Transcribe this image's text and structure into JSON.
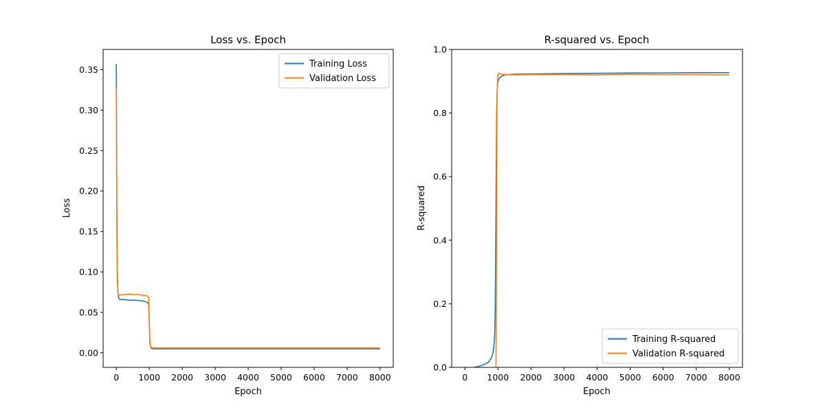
{
  "chart_data": [
    {
      "type": "line",
      "title": "Loss vs. Epoch",
      "xlabel": "Epoch",
      "ylabel": "Loss",
      "xlim": [
        -400,
        8400
      ],
      "ylim": [
        -0.018,
        0.375
      ],
      "xticks": [
        0,
        1000,
        2000,
        3000,
        4000,
        5000,
        6000,
        7000,
        8000
      ],
      "xtick_labels": [
        "0",
        "1000",
        "2000",
        "3000",
        "4000",
        "5000",
        "6000",
        "7000",
        "8000"
      ],
      "yticks": [
        0.0,
        0.05,
        0.1,
        0.15,
        0.2,
        0.25,
        0.3,
        0.35
      ],
      "ytick_labels": [
        "0.00",
        "0.05",
        "0.10",
        "0.15",
        "0.20",
        "0.25",
        "0.30",
        "0.35"
      ],
      "legend_position": "top-right",
      "grid": false,
      "series": [
        {
          "name": "Training Loss",
          "color": "#1f77b4",
          "x": [
            0,
            10,
            20,
            30,
            50,
            70,
            100,
            200,
            400,
            600,
            800,
            900,
            950,
            980,
            1000,
            1020,
            1050,
            1100,
            1500,
            2000,
            3000,
            4000,
            5000,
            6000,
            7000,
            8000
          ],
          "y": [
            0.357,
            0.25,
            0.15,
            0.1,
            0.075,
            0.068,
            0.066,
            0.066,
            0.065,
            0.065,
            0.064,
            0.063,
            0.062,
            0.06,
            0.035,
            0.012,
            0.006,
            0.005,
            0.005,
            0.005,
            0.005,
            0.005,
            0.005,
            0.005,
            0.005,
            0.005
          ]
        },
        {
          "name": "Validation Loss",
          "color": "#ff7f0e",
          "x": [
            0,
            10,
            20,
            30,
            50,
            70,
            100,
            200,
            300,
            400,
            500,
            600,
            700,
            800,
            900,
            950,
            980,
            1000,
            1020,
            1050,
            1100,
            1500,
            2000,
            3000,
            4000,
            5000,
            6000,
            7000,
            8000
          ],
          "y": [
            0.327,
            0.22,
            0.13,
            0.09,
            0.074,
            0.071,
            0.071,
            0.072,
            0.072,
            0.073,
            0.072,
            0.072,
            0.072,
            0.071,
            0.071,
            0.07,
            0.068,
            0.04,
            0.012,
            0.007,
            0.006,
            0.006,
            0.006,
            0.006,
            0.006,
            0.006,
            0.006,
            0.006,
            0.006
          ]
        }
      ]
    },
    {
      "type": "line",
      "title": "R-squared vs. Epoch",
      "xlabel": "Epoch",
      "ylabel": "R-squared",
      "xlim": [
        -400,
        8400
      ],
      "ylim": [
        0.0,
        1.0
      ],
      "xticks": [
        0,
        1000,
        2000,
        3000,
        4000,
        5000,
        6000,
        7000,
        8000
      ],
      "xtick_labels": [
        "0",
        "1000",
        "2000",
        "3000",
        "4000",
        "5000",
        "6000",
        "7000",
        "8000"
      ],
      "yticks": [
        0.0,
        0.2,
        0.4,
        0.6,
        0.8,
        1.0
      ],
      "ytick_labels": [
        "0.0",
        "0.2",
        "0.4",
        "0.6",
        "0.8",
        "1.0"
      ],
      "legend_position": "bottom-right",
      "grid": false,
      "series": [
        {
          "name": "Training R-squared",
          "color": "#1f77b4",
          "x": [
            300,
            400,
            500,
            600,
            700,
            750,
            800,
            850,
            880,
            900,
            920,
            940,
            960,
            980,
            1000,
            1050,
            1100,
            1200,
            1500,
            2000,
            3000,
            4000,
            5000,
            6000,
            7000,
            8000
          ],
          "y": [
            0.0,
            0.003,
            0.006,
            0.01,
            0.015,
            0.022,
            0.03,
            0.045,
            0.07,
            0.1,
            0.2,
            0.5,
            0.8,
            0.88,
            0.9,
            0.91,
            0.915,
            0.92,
            0.922,
            0.923,
            0.924,
            0.925,
            0.926,
            0.926,
            0.927,
            0.927
          ]
        },
        {
          "name": "Validation R-squared",
          "color": "#ff7f0e",
          "x": [
            940,
            950,
            960,
            970,
            980,
            990,
            1000,
            1020,
            1050,
            1100,
            1500,
            2000,
            3000,
            4000,
            5000,
            6000,
            7000,
            8000
          ],
          "y": [
            0.0,
            0.2,
            0.5,
            0.8,
            0.88,
            0.91,
            0.92,
            0.925,
            0.925,
            0.922,
            0.92,
            0.921,
            0.921,
            0.92,
            0.922,
            0.921,
            0.921,
            0.92
          ]
        }
      ]
    }
  ]
}
